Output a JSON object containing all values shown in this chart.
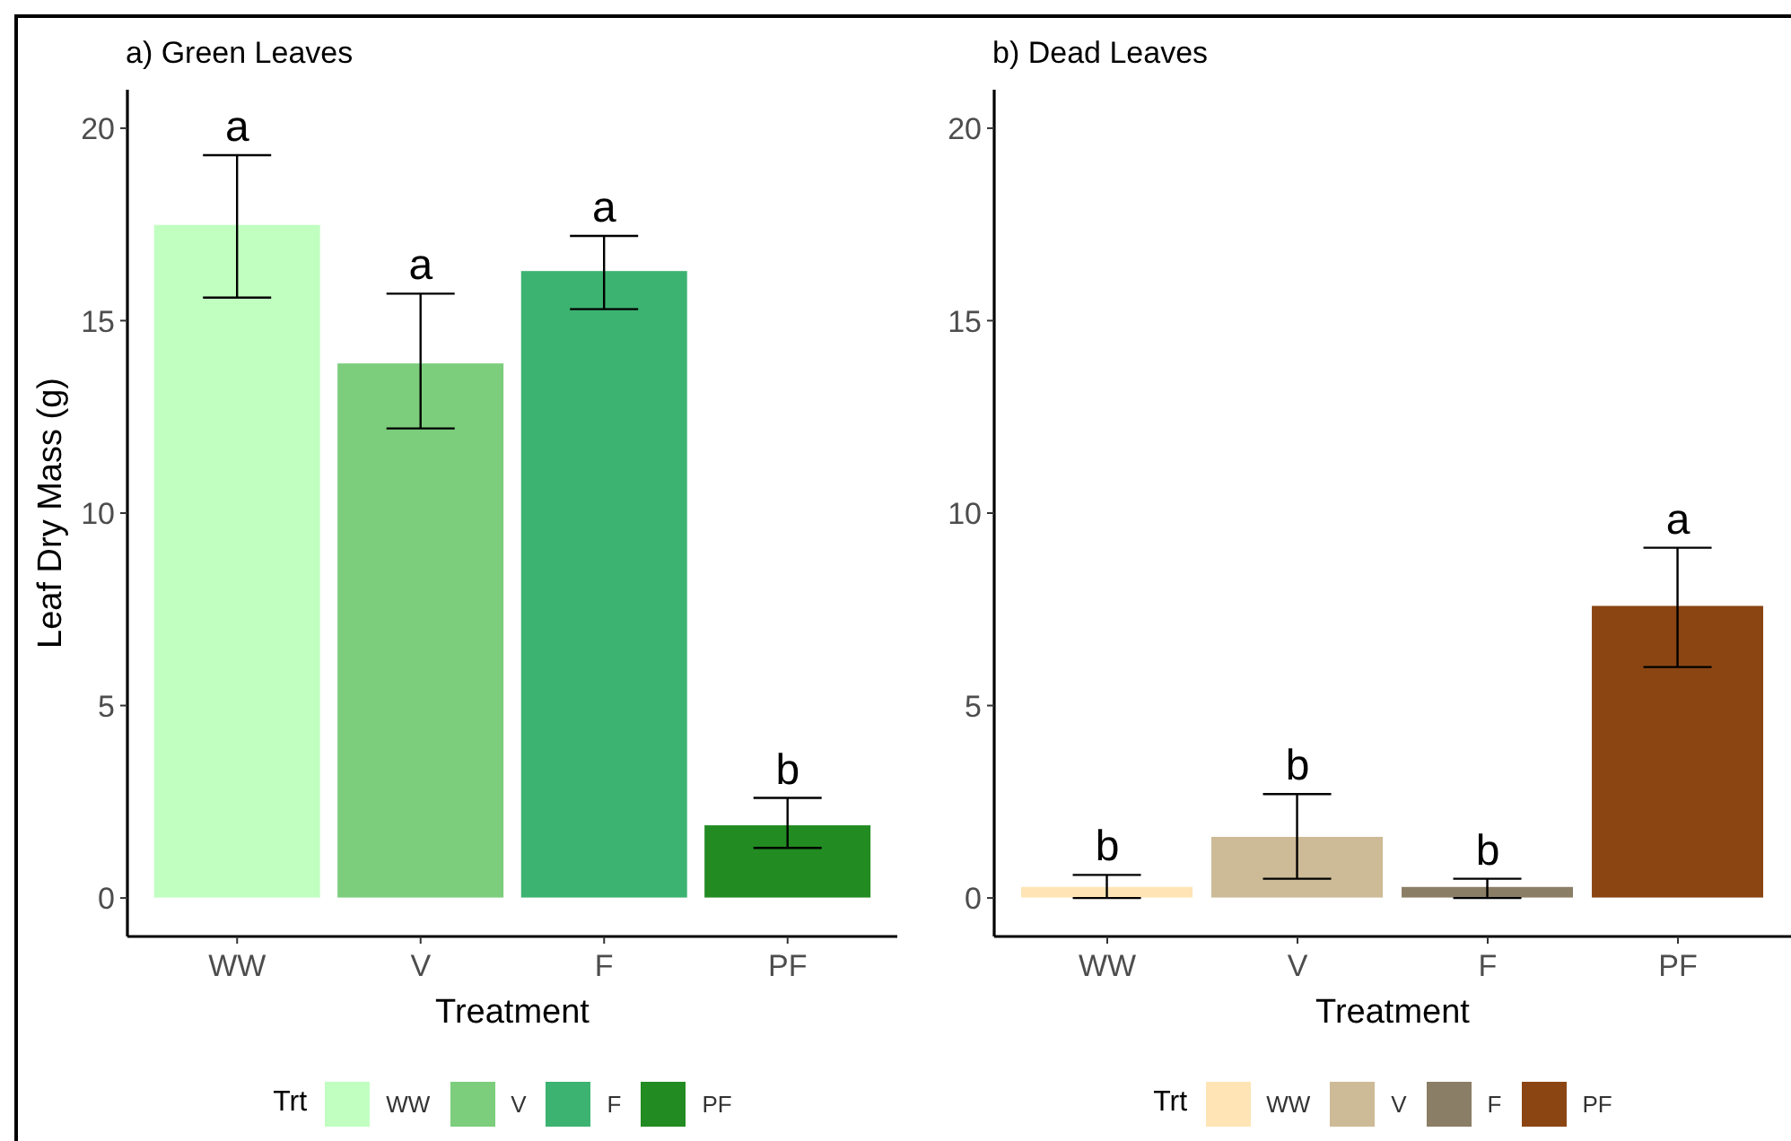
{
  "chart_data": [
    {
      "type": "bar",
      "title": "a) Green Leaves",
      "xlabel": "Treatment",
      "ylabel": "Leaf Dry Mass (g)",
      "legend_title": "Trt",
      "categories": [
        "WW",
        "V",
        "F",
        "PF"
      ],
      "series": [
        {
          "name": "WW",
          "color": "#c1ffc1",
          "values": [
            17.5,
            null,
            null,
            null
          ],
          "errors": [
            [
              15.6,
              19.3
            ],
            null,
            null,
            null
          ]
        },
        {
          "name": "V",
          "color": "#7ccd7c",
          "values": [
            null,
            13.9,
            null,
            null
          ],
          "errors": [
            null,
            [
              12.2,
              15.7
            ],
            null,
            null
          ]
        },
        {
          "name": "F",
          "color": "#3cb371",
          "values": [
            null,
            null,
            16.3,
            null
          ],
          "errors": [
            null,
            null,
            [
              15.3,
              17.2
            ],
            null
          ]
        },
        {
          "name": "PF",
          "color": "#228b22",
          "values": [
            null,
            null,
            null,
            1.9
          ],
          "errors": [
            null,
            null,
            null,
            [
              1.3,
              2.6
            ]
          ]
        }
      ],
      "ylim": [
        -1,
        21
      ],
      "yticks": [
        0,
        5,
        10,
        15,
        20
      ],
      "legend": "bottom",
      "annotations": [
        {
          "text": "a",
          "x": "WW",
          "y": 17.5
        },
        {
          "text": "a",
          "x": "V",
          "y": 13.9
        },
        {
          "text": "a",
          "x": "F",
          "y": 16.3
        },
        {
          "text": "b",
          "x": "PF",
          "y": 1.9
        }
      ]
    },
    {
      "type": "bar",
      "title": "b) Dead Leaves",
      "xlabel": "Treatment",
      "legend_title": "Trt",
      "categories": [
        "WW",
        "V",
        "F",
        "PF"
      ],
      "series": [
        {
          "name": "WW",
          "color": "#ffe4b5",
          "values": [
            0.3,
            null,
            null,
            null
          ],
          "errors": [
            [
              0.0,
              0.6
            ],
            null,
            null,
            null
          ]
        },
        {
          "name": "V",
          "color": "#cdba96",
          "values": [
            null,
            1.6,
            null,
            null
          ],
          "errors": [
            null,
            [
              0.5,
              2.7
            ],
            null,
            null
          ]
        },
        {
          "name": "F",
          "color": "#8b7e66",
          "values": [
            null,
            null,
            0.3,
            null
          ],
          "errors": [
            null,
            null,
            [
              0.0,
              0.5
            ],
            null
          ]
        },
        {
          "name": "PF",
          "color": "#8b4513",
          "values": [
            null,
            null,
            null,
            7.6
          ],
          "errors": [
            null,
            null,
            null,
            [
              6.0,
              9.1
            ]
          ]
        }
      ],
      "ylim": [
        -1,
        21
      ],
      "yticks": [
        0,
        5,
        10,
        15,
        20
      ],
      "legend": "bottom",
      "annotations": [
        {
          "text": "b",
          "x": "WW",
          "y": 0.3
        },
        {
          "text": "b",
          "x": "V",
          "y": 1.6
        },
        {
          "text": "b",
          "x": "F",
          "y": 0.3
        },
        {
          "text": "a",
          "x": "PF",
          "y": 7.6
        }
      ]
    }
  ]
}
